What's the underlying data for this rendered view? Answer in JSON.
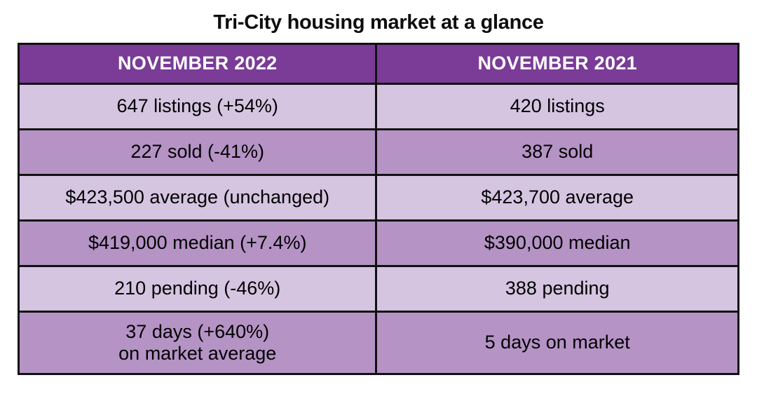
{
  "page": {
    "title": "Tri-City housing market at a glance"
  },
  "chart_data": {
    "type": "table",
    "title": "Tri-City housing market at a glance",
    "columns": [
      "NOVEMBER 2022",
      "NOVEMBER 2021"
    ],
    "rows": [
      [
        "647 listings (+54%)",
        "420 listings"
      ],
      [
        "227 sold (-41%)",
        "387 sold"
      ],
      [
        "$423,500 average (unchanged)",
        "$423,700 average"
      ],
      [
        "$419,000 median (+7.4%)",
        "$390,000 median"
      ],
      [
        "210 pending (-46%)",
        "388 pending"
      ],
      [
        "37 days (+640%)\non market average",
        "5 days on market"
      ]
    ],
    "metrics_2022": {
      "listings": 647,
      "listings_change_pct": 54,
      "sold": 227,
      "sold_change_pct": -41,
      "average_price": 423500,
      "average_price_change": "unchanged",
      "median_price": 419000,
      "median_change_pct": 7.4,
      "pending": 210,
      "pending_change_pct": -46,
      "days_on_market": 37,
      "days_on_market_change_pct": 640
    },
    "metrics_2021": {
      "listings": 420,
      "sold": 387,
      "average_price": 423700,
      "median_price": 390000,
      "pending": 388,
      "days_on_market": 5
    }
  },
  "colors": {
    "header_bg": "#7a3c97",
    "header_text": "#ffffff",
    "row_light_bg": "#d5c5e1",
    "row_medium_bg": "#b593c5",
    "border": "#111111",
    "cell_text": "#000000",
    "title_text": "#0d0d0d",
    "page_bg": "#ffffff"
  }
}
